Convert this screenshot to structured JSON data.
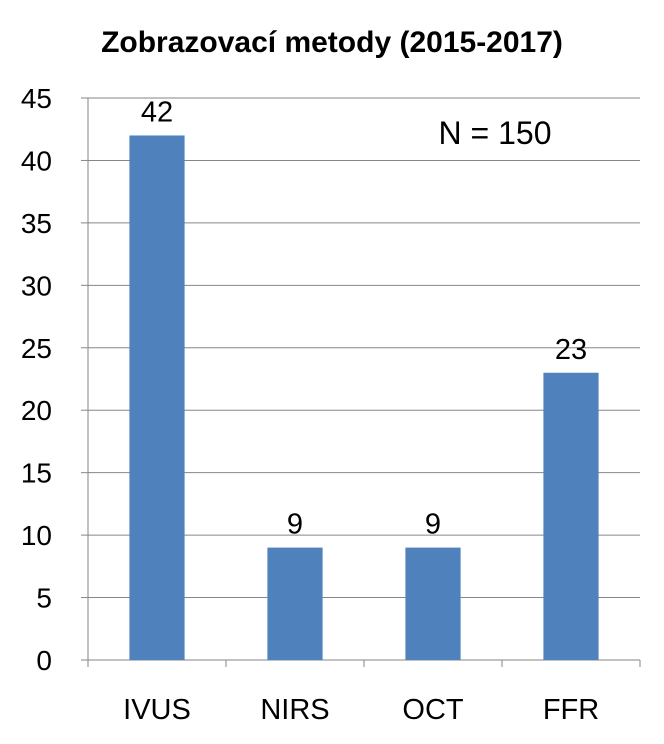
{
  "chart_data": {
    "type": "bar",
    "title": "Zobrazovací metody (2015-2017)",
    "annotation": "N = 150",
    "categories": [
      "IVUS",
      "NIRS",
      "OCT",
      "FFR"
    ],
    "values": [
      42,
      9,
      9,
      23
    ],
    "data_labels": [
      "42",
      "9",
      "9",
      "23"
    ],
    "ylim": [
      0,
      45
    ],
    "yticks": [
      0,
      5,
      10,
      15,
      20,
      25,
      30,
      35,
      40,
      45
    ],
    "grid": true,
    "legend": "none",
    "colors": {
      "bar": "#4F81BD",
      "grid": "#868686",
      "axis": "#868686"
    }
  }
}
